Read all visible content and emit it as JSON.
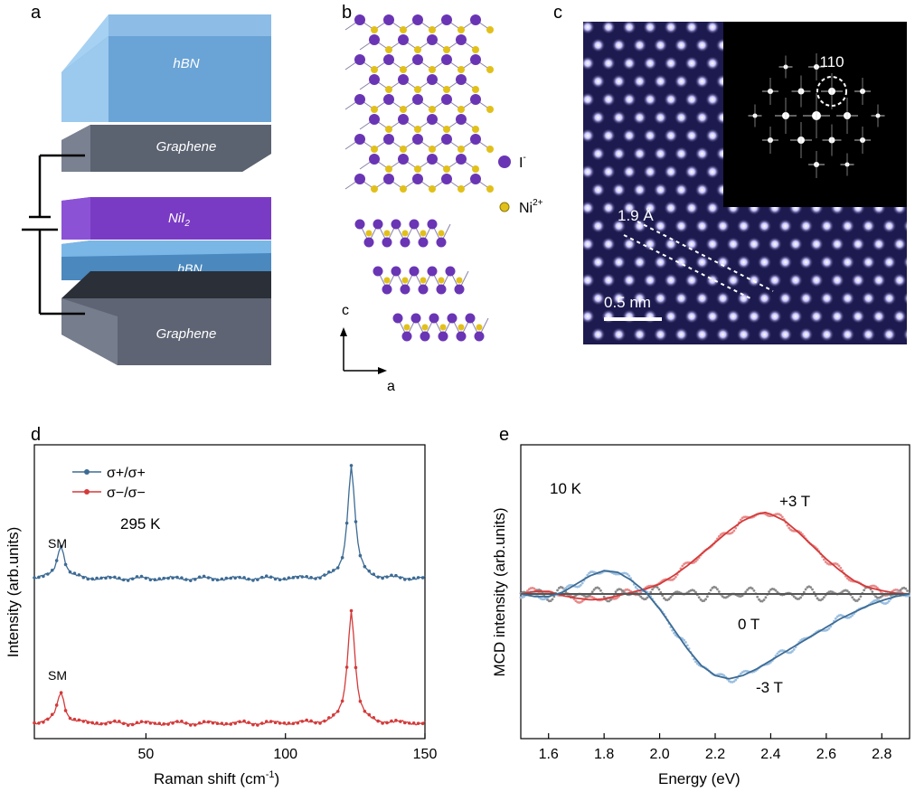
{
  "panel_labels": {
    "a": "a",
    "b": "b",
    "c": "c",
    "d": "d",
    "e": "e"
  },
  "panel_a": {
    "layers": [
      "hBN",
      "Graphene",
      "NiI",
      "hBN",
      "Graphene"
    ],
    "nii2_subscript": "2"
  },
  "panel_b": {
    "legend": {
      "iodine": "I",
      "iodine_sup": "-",
      "nickel": "Ni",
      "nickel_sup": "2+"
    },
    "axis_c": "c",
    "axis_a": "a",
    "colors": {
      "iodine": "#6a35b5",
      "nickel": "#e2c01a",
      "bond": "#8a7fa8"
    }
  },
  "panel_c": {
    "fft_label": "110",
    "spacing_label": "1.9 Å",
    "scale_label": "0.5 nm",
    "colors": {
      "background": "#1c1a4e",
      "atom": "#b8b2ff"
    }
  },
  "chart_data": [
    {
      "type": "line",
      "panel": "d",
      "xlabel": "Raman shift (cm",
      "xlabel_sup": "-1",
      "xlabel_end": ")",
      "ylabel": "Intensity (arb.units)",
      "xlim": [
        10,
        150
      ],
      "x_ticks": [
        "50",
        "100",
        "150"
      ],
      "temperature": "295 K",
      "annotations": [
        "SM",
        "SM"
      ],
      "series": [
        {
          "name": "σ+/σ+",
          "color": "#3d6b94",
          "baseline": 0.0,
          "peaks": [
            {
              "x": 19.5,
              "height": 0.3
            },
            {
              "x": 123.6,
              "height": 1.0
            }
          ]
        },
        {
          "name": "σ−/σ−",
          "color": "#d43a3a",
          "baseline": 0.0,
          "peaks": [
            {
              "x": 19.5,
              "height": 0.28
            },
            {
              "x": 123.6,
              "height": 1.0
            }
          ]
        }
      ]
    },
    {
      "type": "line",
      "panel": "e",
      "xlabel": "Energy (eV)",
      "ylabel": "MCD intensity (arb.units)",
      "xlim": [
        1.5,
        2.9
      ],
      "x_ticks": [
        "1.6",
        "1.8",
        "2.0",
        "2.2",
        "2.4",
        "2.6",
        "2.8"
      ],
      "temperature": "10 K",
      "series": [
        {
          "name": "+3 T",
          "color": "#d43a3a",
          "x": [
            1.5,
            1.55,
            1.6,
            1.65,
            1.7,
            1.75,
            1.8,
            1.85,
            1.9,
            1.95,
            2.0,
            2.05,
            2.1,
            2.15,
            2.2,
            2.25,
            2.3,
            2.35,
            2.38,
            2.4,
            2.45,
            2.5,
            2.55,
            2.6,
            2.65,
            2.7,
            2.75,
            2.8,
            2.85,
            2.9
          ],
          "y": [
            0.0,
            0.03,
            0.03,
            -0.02,
            -0.05,
            -0.07,
            -0.06,
            -0.02,
            0.02,
            0.06,
            0.12,
            0.22,
            0.34,
            0.48,
            0.62,
            0.76,
            0.88,
            0.96,
            0.98,
            0.96,
            0.88,
            0.74,
            0.58,
            0.42,
            0.28,
            0.16,
            0.08,
            0.04,
            0.01,
            0.0
          ]
        },
        {
          "name": "0 T",
          "color": "#555555",
          "x": [
            1.5,
            2.9
          ],
          "y": [
            0.0,
            0.0
          ]
        },
        {
          "name": "-3 T",
          "color": "#3d6b94",
          "x": [
            1.5,
            1.55,
            1.6,
            1.65,
            1.7,
            1.75,
            1.8,
            1.85,
            1.9,
            1.95,
            2.0,
            2.05,
            2.1,
            2.15,
            2.2,
            2.25,
            2.3,
            2.35,
            2.4,
            2.45,
            2.5,
            2.55,
            2.6,
            2.65,
            2.7,
            2.75,
            2.8,
            2.85,
            2.9
          ],
          "y": [
            0.0,
            -0.03,
            -0.03,
            0.02,
            0.12,
            0.22,
            0.28,
            0.26,
            0.16,
            0.02,
            -0.18,
            -0.42,
            -0.66,
            -0.86,
            -0.98,
            -1.02,
            -0.98,
            -0.9,
            -0.8,
            -0.7,
            -0.6,
            -0.5,
            -0.4,
            -0.3,
            -0.22,
            -0.14,
            -0.08,
            -0.03,
            0.0
          ]
        }
      ],
      "labels": {
        "plus": "+3 T",
        "zero": "0 T",
        "minus": "-3 T"
      }
    }
  ]
}
